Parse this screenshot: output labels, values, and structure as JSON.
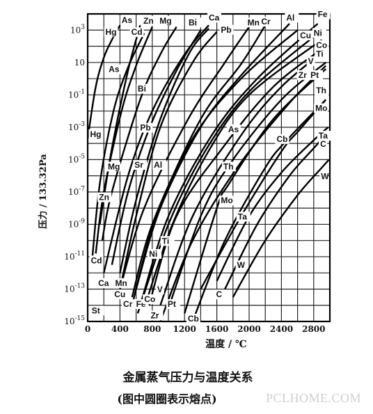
{
  "chart_data": {
    "type": "line",
    "title": "金属蒸气压力与温度关系",
    "subtitle": "(图中圆圈表示熔点)",
    "xlabel": "温度 / ℃",
    "ylabel": "压力 / 133.32Pa",
    "xlim": [
      0,
      3000
    ],
    "ylim_log10": [
      -15,
      4
    ],
    "y_scale": "log",
    "grid": true,
    "x_ticks": [
      "0",
      "400",
      "800",
      "1200",
      "1600",
      "2000",
      "2400",
      "2800"
    ],
    "y_ticks": [
      {
        "base": "10",
        "exp": "3"
      },
      {
        "base": "10",
        "exp": ""
      },
      {
        "base": "10",
        "exp": "-1"
      },
      {
        "base": "10",
        "exp": "-3"
      },
      {
        "base": "10",
        "exp": "-5"
      },
      {
        "base": "10",
        "exp": "-7"
      },
      {
        "base": "10",
        "exp": "-9"
      },
      {
        "base": "10",
        "exp": "-11"
      },
      {
        "base": "10",
        "exp": "-13"
      },
      {
        "base": "10",
        "exp": "-15"
      }
    ],
    "series": [
      {
        "name": "Hg",
        "x": [
          0,
          100,
          200,
          300,
          400
        ],
        "log10y": [
          -3.7,
          -0.5,
          1.3,
          2.4,
          3.3
        ]
      },
      {
        "name": "Cd",
        "x": [
          50,
          150,
          320,
          500,
          700
        ],
        "log10y": [
          -11.5,
          -6.5,
          -2.0,
          0.7,
          2.8
        ]
      },
      {
        "name": "Zn",
        "x": [
          100,
          200,
          420,
          600,
          800
        ],
        "log10y": [
          -10.8,
          -7.0,
          -2.0,
          0.8,
          3.2
        ]
      },
      {
        "name": "Mg",
        "x": [
          180,
          300,
          650,
          900,
          1100
        ],
        "log10y": [
          -10.0,
          -7.0,
          -1.3,
          1.5,
          3.2
        ]
      },
      {
        "name": "As",
        "x": [
          150,
          300,
          500,
          650
        ],
        "log10y": [
          -9.0,
          -4.3,
          0.5,
          3.3
        ]
      },
      {
        "name": "Bi",
        "x": [
          400,
          600,
          900,
          1250,
          1500
        ],
        "log10y": [
          -12.0,
          -7.5,
          -2.5,
          1.5,
          3.1
        ]
      },
      {
        "name": "Pb",
        "x": [
          400,
          600,
          900,
          1300,
          1600
        ],
        "log10y": [
          -13.0,
          -8.5,
          -3.0,
          1.0,
          2.9
        ]
      },
      {
        "name": "Ca",
        "x": [
          200,
          500,
          800,
          1200,
          1500
        ],
        "log10y": [
          -12.0,
          -6.0,
          -2.0,
          1.5,
          3.3
        ]
      },
      {
        "name": "Sr",
        "x": [
          300,
          500,
          770,
          1100,
          1400
        ],
        "log10y": [
          -11.5,
          -7.0,
          -3.0,
          0.5,
          3.0
        ]
      },
      {
        "name": "Mn",
        "x": [
          400,
          700,
          1244,
          1700,
          2000
        ],
        "log10y": [
          -13.0,
          -8.0,
          -2.5,
          1.0,
          3.2
        ]
      },
      {
        "name": "Al",
        "x": [
          600,
          900,
          1400,
          1900,
          2500
        ],
        "log10y": [
          -13.0,
          -8.0,
          -3.0,
          0.2,
          3.4
        ]
      },
      {
        "name": "Cu",
        "x": [
          550,
          800,
          1300,
          1900,
          2600
        ],
        "log10y": [
          -13.5,
          -9.0,
          -3.7,
          0.0,
          3.0
        ]
      },
      {
        "name": "Cr",
        "x": [
          550,
          850,
          1400,
          1900,
          2200
        ],
        "log10y": [
          -14.0,
          -8.5,
          -2.5,
          0.9,
          3.3
        ]
      },
      {
        "name": "Fe",
        "x": [
          650,
          1000,
          1536,
          2100,
          2850
        ],
        "log10y": [
          -14.0,
          -8.5,
          -3.5,
          0.0,
          3.4
        ]
      },
      {
        "name": "Co",
        "x": [
          700,
          1050,
          1495,
          2000,
          2900
        ],
        "log10y": [
          -14.2,
          -9.0,
          -4.5,
          -1.0,
          2.4
        ]
      },
      {
        "name": "Ni",
        "x": [
          620,
          1000,
          1453,
          2000,
          2850
        ],
        "log10y": [
          -14.5,
          -9.0,
          -4.5,
          -0.8,
          2.8
        ]
      },
      {
        "name": "V",
        "x": [
          900,
          1300,
          1900,
          2400,
          2950
        ],
        "log10y": [
          -14.0,
          -8.5,
          -3.5,
          -0.5,
          1.8
        ]
      },
      {
        "name": "Ti",
        "x": [
          760,
          1100,
          1668,
          2300,
          2950
        ],
        "log10y": [
          -14.0,
          -8.5,
          -4.3,
          -0.5,
          2.0
        ]
      },
      {
        "name": "Pt",
        "x": [
          1000,
          1400,
          1772,
          2400,
          2950
        ],
        "log10y": [
          -14.2,
          -8.5,
          -5.2,
          -1.3,
          1.0
        ]
      },
      {
        "name": "Zr",
        "x": [
          900,
          1300,
          1852,
          2500,
          2950
        ],
        "log10y": [
          -15.0,
          -10.0,
          -5.5,
          -1.5,
          0.8
        ]
      },
      {
        "name": "Th",
        "x": [
          1200,
          1600,
          1750,
          2300,
          2950
        ],
        "log10y": [
          -14.5,
          -8.0,
          -6.5,
          -2.5,
          0.6
        ]
      },
      {
        "name": "Cb",
        "x": [
          1300,
          1700,
          2200,
          2468,
          2950
        ],
        "log10y": [
          -15.0,
          -10.0,
          -5.5,
          -3.8,
          -1.3
        ]
      },
      {
        "name": "Mo",
        "x": [
          1400,
          1900,
          2400,
          2617,
          2950
        ],
        "log10y": [
          -13.0,
          -8.5,
          -4.5,
          -3.2,
          -1.3
        ]
      },
      {
        "name": "C",
        "x": [
          1700,
          2100,
          2500,
          2800,
          2980
        ],
        "log10y": [
          -13.0,
          -9.0,
          -6.0,
          -4.3,
          -3.3
        ]
      },
      {
        "name": "Ta",
        "x": [
          1600,
          2000,
          2400,
          2800,
          2980
        ],
        "log10y": [
          -12.5,
          -8.5,
          -5.8,
          -3.8,
          -3.0
        ]
      },
      {
        "name": "W",
        "x": [
          1800,
          2200,
          2600,
          2900,
          2990
        ],
        "log10y": [
          -13.5,
          -10.0,
          -7.2,
          -5.5,
          -5.0
        ]
      }
    ],
    "labels": [
      {
        "text": "Fe",
        "x": 2850,
        "log10y": 3.8
      },
      {
        "text": "Al",
        "x": 2460,
        "log10y": 3.6
      },
      {
        "text": "Cr",
        "x": 2150,
        "log10y": 3.35
      },
      {
        "text": "Mn",
        "x": 1980,
        "log10y": 3.3
      },
      {
        "text": "Ca",
        "x": 1500,
        "log10y": 3.6
      },
      {
        "text": "Pb",
        "x": 1650,
        "log10y": 2.85
      },
      {
        "text": "Bi",
        "x": 1250,
        "log10y": 3.3
      },
      {
        "text": "Mg",
        "x": 890,
        "log10y": 3.4
      },
      {
        "text": "Zn",
        "x": 690,
        "log10y": 3.4
      },
      {
        "text": "Cd",
        "x": 540,
        "log10y": 2.7
      },
      {
        "text": "As",
        "x": 420,
        "log10y": 3.45
      },
      {
        "text": "Hg",
        "x": 220,
        "log10y": 2.7
      },
      {
        "text": "Cu",
        "x": 2630,
        "log10y": 2.5
      },
      {
        "text": "Ni",
        "x": 2800,
        "log10y": 2.65
      },
      {
        "text": "Co",
        "x": 2830,
        "log10y": 1.9
      },
      {
        "text": "Ti",
        "x": 2830,
        "log10y": 1.35
      },
      {
        "text": "V",
        "x": 2730,
        "log10y": 0.9
      },
      {
        "text": "Zr",
        "x": 2610,
        "log10y": 0.05
      },
      {
        "text": "Pt",
        "x": 2760,
        "log10y": 0.05
      },
      {
        "text": "Th",
        "x": 2830,
        "log10y": -0.9
      },
      {
        "text": "Mo",
        "x": 2820,
        "log10y": -2.0
      },
      {
        "text": "Cb",
        "x": 2340,
        "log10y": -3.9
      },
      {
        "text": "Ta",
        "x": 2860,
        "log10y": -3.7
      },
      {
        "text": "C",
        "x": 2880,
        "log10y": -4.2
      },
      {
        "text": "W",
        "x": 2890,
        "log10y": -6.2
      },
      {
        "text": "As",
        "x": 1740,
        "log10y": -3.3
      },
      {
        "text": "Th",
        "x": 1680,
        "log10y": -5.6
      },
      {
        "text": "Mo",
        "x": 1650,
        "log10y": -7.7
      },
      {
        "text": "Ta",
        "x": 1860,
        "log10y": -8.7
      },
      {
        "text": "W",
        "x": 1850,
        "log10y": -11.7
      },
      {
        "text": "C",
        "x": 1590,
        "log10y": -13.5
      },
      {
        "text": "Cb",
        "x": 1240,
        "log10y": -15.0
      },
      {
        "text": "Hg",
        "x": 30,
        "log10y": -3.6
      },
      {
        "text": "Mg",
        "x": 250,
        "log10y": -5.6
      },
      {
        "text": "Sr",
        "x": 580,
        "log10y": -5.5
      },
      {
        "text": "Pb",
        "x": 650,
        "log10y": -3.2
      },
      {
        "text": "Bi",
        "x": 620,
        "log10y": -0.8
      },
      {
        "text": "As",
        "x": 260,
        "log10y": 0.4
      },
      {
        "text": "Zn",
        "x": 140,
        "log10y": -7.5
      },
      {
        "text": "Cd",
        "x": 40,
        "log10y": -11.4
      },
      {
        "text": "Al",
        "x": 820,
        "log10y": -5.5
      },
      {
        "text": "Ti",
        "x": 920,
        "log10y": -10.2
      },
      {
        "text": "Ni",
        "x": 760,
        "log10y": -11.0
      },
      {
        "text": "Ca",
        "x": 130,
        "log10y": -12.8
      },
      {
        "text": "Mn",
        "x": 340,
        "log10y": -12.8
      },
      {
        "text": "Cu",
        "x": 330,
        "log10y": -13.5
      },
      {
        "text": "Cr",
        "x": 440,
        "log10y": -14.1
      },
      {
        "text": "Fe",
        "x": 600,
        "log10y": -14.1
      },
      {
        "text": "Co",
        "x": 700,
        "log10y": -13.8
      },
      {
        "text": "V",
        "x": 860,
        "log10y": -13.2
      },
      {
        "text": "Pt",
        "x": 990,
        "log10y": -14.1
      },
      {
        "text": "Zr",
        "x": 780,
        "log10y": -14.8
      },
      {
        "text": "St",
        "x": 50,
        "log10y": -14.5
      }
    ]
  },
  "watermark": "PCLHOME.COM"
}
